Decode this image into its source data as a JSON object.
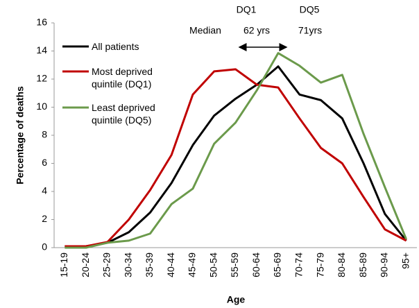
{
  "chart_data": {
    "type": "line",
    "x_label": "Age",
    "y_label": "Percentage of deaths",
    "categories": [
      "15-19",
      "20-24",
      "25-29",
      "30-34",
      "35-39",
      "40-44",
      "45-49",
      "50-54",
      "55-59",
      "60-64",
      "65-69",
      "70-74",
      "75-79",
      "80-84",
      "85-89",
      "90-94",
      "95+"
    ],
    "series": [
      {
        "name": "All patients",
        "color": "#000000",
        "values": [
          0.1,
          0.1,
          0.35,
          1.1,
          2.5,
          4.6,
          7.3,
          9.4,
          10.6,
          11.6,
          12.9,
          10.9,
          10.5,
          9.2,
          6.0,
          2.4,
          0.5
        ]
      },
      {
        "name": "Most deprived quintile (DQ1)",
        "color": "#c00000",
        "values": [
          0.1,
          0.1,
          0.4,
          2.0,
          4.1,
          6.6,
          10.9,
          12.55,
          12.7,
          11.6,
          11.4,
          9.2,
          7.1,
          6.0,
          3.6,
          1.3,
          0.5
        ]
      },
      {
        "name": "Least deprived quintile (DQ5)",
        "color": "#6b9a4b",
        "values": [
          0.0,
          0.0,
          0.35,
          0.5,
          1.0,
          3.1,
          4.2,
          7.4,
          8.9,
          11.2,
          13.85,
          12.95,
          11.75,
          12.3,
          8.1,
          4.3,
          0.6
        ]
      }
    ],
    "ylim": [
      0,
      16
    ],
    "yticks": [
      0,
      2,
      4,
      6,
      8,
      10,
      12,
      14,
      16
    ],
    "grid": false,
    "annotations": {
      "dq1": "DQ1",
      "dq5": "DQ5",
      "median": "Median",
      "dq1_age": "62 yrs",
      "dq5_age": "71yrs"
    }
  }
}
